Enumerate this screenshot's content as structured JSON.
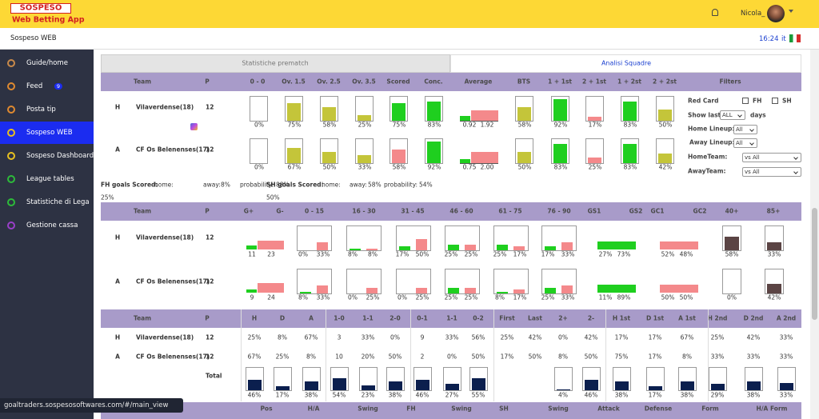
{
  "header": {
    "logo": "SOSPESO",
    "app_name": "Web Betting App",
    "user": "Nicola_"
  },
  "subheader": {
    "title": "Sospeso WEB",
    "time": "16:24",
    "lang": "it"
  },
  "sidebar": [
    {
      "label": "Guide/home"
    },
    {
      "label": "Feed",
      "badge": "9"
    },
    {
      "label": "Posta tip"
    },
    {
      "label": "Sospeso WEB"
    },
    {
      "label": "Sospeso Dashboard"
    },
    {
      "label": "League tables"
    },
    {
      "label": "Statistiche di Lega"
    },
    {
      "label": "Gestione cassa"
    }
  ],
  "tabs": [
    "Statistiche prematch",
    "Analisi Squadre"
  ],
  "section1": {
    "columns": [
      "Team",
      "P",
      "0 - 0",
      "Ov. 1.5",
      "Ov. 2.5",
      "Ov. 3.5",
      "Scored",
      "Conc.",
      "Average",
      "BTS",
      "1 + 1st",
      "2 + 1st",
      "1 + 2st",
      "2 + 2st",
      "Filters"
    ],
    "rows": [
      {
        "side": "H",
        "team": "Vilaverdense(18)",
        "p": "12",
        "cells": [
          "0%",
          "75%",
          "58%",
          "25%",
          "75%",
          "83%",
          "58%",
          "92%",
          "17%",
          "83%",
          "50%"
        ],
        "average": [
          "0.92",
          "1.92"
        ]
      },
      {
        "side": "A",
        "team": "CF Os Belenenses(17)",
        "p": "12",
        "cells": [
          "0%",
          "67%",
          "50%",
          "33%",
          "58%",
          "92%",
          "50%",
          "83%",
          "25%",
          "83%",
          "42%"
        ],
        "average": [
          "0.75",
          "2.00"
        ]
      }
    ],
    "filters": {
      "red_card": "Red Card",
      "fh": "FH",
      "sh": "SH",
      "show_last": "Show last",
      "show_last_value": "ALL",
      "days": "days",
      "home_lineup": "Home Lineup:",
      "home_lineup_value": "All",
      "away_lineup": "Away Lineup:",
      "away_lineup_value": "All",
      "home_team": "HomeTeam:",
      "home_team_value": "vs All",
      "away_team": "AwayTeam:",
      "away_team_value": "vs All"
    },
    "goals": {
      "fh_label": "FH goals Scored:",
      "home_label": "home:",
      "away_label": "away:",
      "probability_label": "probability:",
      "fh_home": "25%",
      "fh_away": "8%",
      "fh_probability": "88%",
      "sh_label": "SH goals Scored:",
      "sh_home": "50%",
      "sh_away": "58%",
      "sh_probability": "54%"
    }
  },
  "section2": {
    "columns": [
      "Team",
      "P",
      "G+",
      "G-",
      "0 - 15",
      "16 - 30",
      "31 - 45",
      "46 - 60",
      "61 - 75",
      "76 - 90",
      "GS1",
      "GS2",
      "GC1",
      "GC2",
      "40+",
      "85+"
    ],
    "rows": [
      {
        "side": "H",
        "team": "Vilaverdense(18)",
        "p": "12",
        "cells": [
          "11",
          "23",
          "0%",
          "33%",
          "8%",
          "8%",
          "17%",
          "50%",
          "25%",
          "25%",
          "25%",
          "17%",
          "17%",
          "33%",
          "27%",
          "73%",
          "52%",
          "48%",
          "58%",
          "33%"
        ]
      },
      {
        "side": "A",
        "team": "CF Os Belenenses(17)",
        "p": "12",
        "cells": [
          "9",
          "24",
          "8%",
          "33%",
          "0%",
          "25%",
          "0%",
          "25%",
          "25%",
          "25%",
          "8%",
          "17%",
          "25%",
          "33%",
          "11%",
          "89%",
          "50%",
          "50%",
          "0%",
          "42%"
        ]
      }
    ]
  },
  "section3": {
    "columns": [
      "Team",
      "P",
      "H",
      "D",
      "A",
      "1-0",
      "1-1",
      "2-0",
      "0-1",
      "1-1",
      "0-2",
      "First",
      "Last",
      "2+",
      "2-",
      "H 1st",
      "D 1st",
      "A 1st",
      "H 2nd",
      "D 2nd",
      "A 2nd"
    ],
    "rows": [
      {
        "side": "H",
        "team": "Vilaverdense(18)",
        "p": "12",
        "cells": [
          "25%",
          "8%",
          "67%",
          "3",
          "33%",
          "0%",
          "9",
          "33%",
          "56%",
          "25%",
          "42%",
          "0%",
          "42%",
          "17%",
          "17%",
          "67%",
          "25%",
          "42%",
          "33%"
        ]
      },
      {
        "side": "A",
        "team": "CF Os Belenenses(17)",
        "p": "12",
        "cells": [
          "67%",
          "25%",
          "8%",
          "10",
          "20%",
          "50%",
          "2",
          "0%",
          "50%",
          "17%",
          "50%",
          "8%",
          "50%",
          "75%",
          "17%",
          "8%",
          "33%",
          "33%",
          "33%"
        ]
      }
    ],
    "total": {
      "label": "Total",
      "values": [
        "46%",
        "17%",
        "38%",
        "54%",
        "23%",
        "38%",
        "46%",
        "27%",
        "55%",
        "4%",
        "46%",
        "38%",
        "17%",
        "38%",
        "29%",
        "38%",
        "33%"
      ]
    }
  },
  "section4": {
    "columns": [
      "Pos",
      "H/A",
      "Swing",
      "FH",
      "Swing",
      "SH",
      "Swing",
      "Attack",
      "Defense",
      "Form",
      "H/A Form"
    ]
  },
  "status_url": "goaltraders.sospesosoftwares.com/#/main_view"
}
